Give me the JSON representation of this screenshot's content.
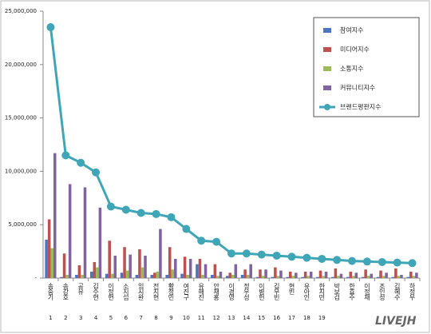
{
  "chart_data": {
    "type": "bar-line",
    "categories": [
      "송중기",
      "송강호",
      "공유",
      "김수현",
      "이정현",
      "소지섭",
      "임시완",
      "전지현",
      "황정민",
      "여진구",
      "유해진",
      "안재홍",
      "이경영",
      "정우성",
      "이병헌",
      "김우빈",
      "현빈",
      "유아인",
      "한지민",
      "박보검",
      "한효주",
      "이정재",
      "조인성",
      "김혜수",
      "하정우"
    ],
    "ranks": [
      1,
      2,
      3,
      4,
      5,
      6,
      7,
      8,
      9,
      10,
      11,
      12,
      13,
      14,
      15,
      16,
      17,
      18,
      19,
      null,
      null,
      null,
      null,
      null,
      null
    ],
    "series": [
      {
        "name": "참여지수",
        "color": "#4a74c4",
        "values": [
          3600000,
          100000,
          300000,
          600000,
          400000,
          500000,
          300000,
          300000,
          300000,
          400000,
          1300000,
          300000,
          200000,
          300000,
          100000,
          100000,
          100000,
          100000,
          100000,
          100000,
          100000,
          100000,
          100000,
          100000,
          100000
        ]
      },
      {
        "name": "미디어지수",
        "color": "#c0504d",
        "values": [
          5500000,
          2300000,
          1200000,
          1500000,
          3500000,
          2900000,
          2700000,
          500000,
          2900000,
          2000000,
          1800000,
          1300000,
          500000,
          800000,
          800000,
          1000000,
          600000,
          600000,
          700000,
          900000,
          600000,
          800000,
          700000,
          900000,
          600000
        ]
      },
      {
        "name": "소통지수",
        "color": "#9bbb59",
        "values": [
          2800000,
          300000,
          300000,
          1000000,
          400000,
          700000,
          1000000,
          600000,
          800000,
          300000,
          300000,
          200000,
          300000,
          300000,
          200000,
          200000,
          200000,
          200000,
          200000,
          200000,
          200000,
          200000,
          200000,
          200000,
          200000
        ]
      },
      {
        "name": "커뮤니티지수",
        "color": "#8064a2",
        "values": [
          11700000,
          8800000,
          8500000,
          6600000,
          2100000,
          2200000,
          2100000,
          4600000,
          1800000,
          1800000,
          1300000,
          600000,
          1300000,
          1300000,
          800000,
          700000,
          500000,
          600000,
          600000,
          400000,
          500000,
          400000,
          500000,
          300000,
          500000
        ]
      },
      {
        "name": "브랜드평판지수",
        "color": "#3fa6b8",
        "type": "line",
        "values": [
          23500000,
          11500000,
          10800000,
          9900000,
          6700000,
          6400000,
          6100000,
          6000000,
          5700000,
          4600000,
          3500000,
          3400000,
          2300000,
          2300000,
          2200000,
          2100000,
          2000000,
          1900000,
          1800000,
          1700000,
          1600000,
          1550000,
          1500000,
          1450000,
          1400000
        ]
      }
    ],
    "ylim": [
      0,
      25000000
    ],
    "yticks": [
      {
        "value": 0,
        "label": "-"
      },
      {
        "value": 5000000,
        "label": "5,000,000"
      },
      {
        "value": 10000000,
        "label": "10,000,000"
      },
      {
        "value": 15000000,
        "label": "15,000,000"
      },
      {
        "value": 20000000,
        "label": "20,000,000"
      },
      {
        "value": 25000000,
        "label": "25,000,000"
      }
    ],
    "legend": "top-right",
    "watermark": "LIVEJH"
  }
}
